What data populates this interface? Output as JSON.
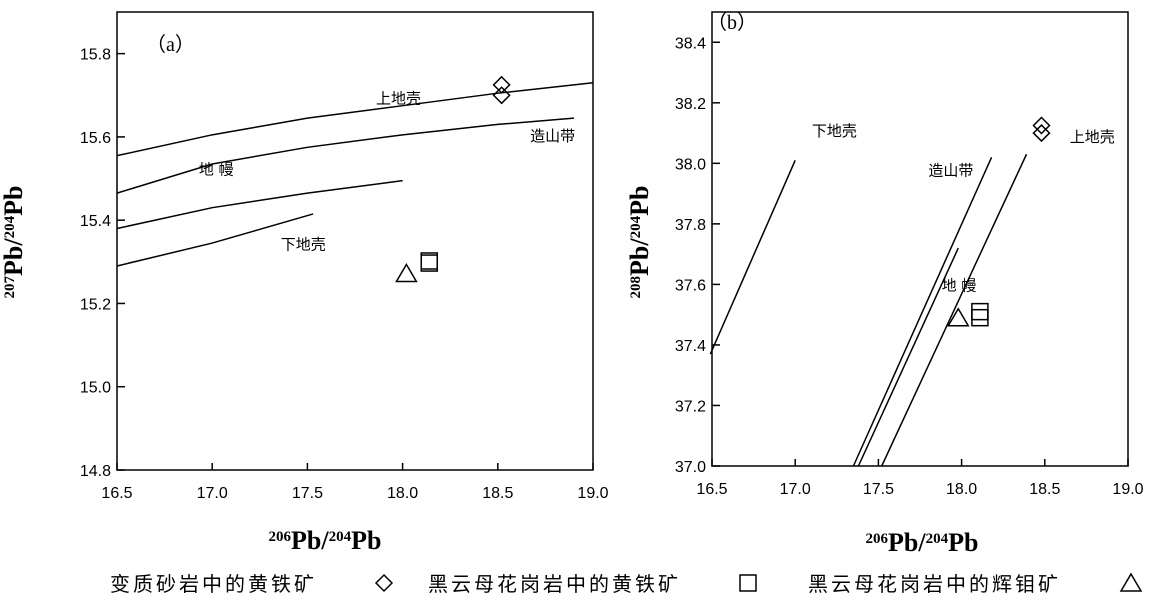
{
  "legend": [
    {
      "label": "变质砂岩中的黄铁矿",
      "marker": "diamond"
    },
    {
      "label": "黑云母花岗岩中的黄铁矿",
      "marker": "square"
    },
    {
      "label": "黑云母花岗岩中的辉钼矿",
      "marker": "triangle"
    }
  ],
  "chart_data": [
    {
      "type": "scatter",
      "panel_label": "（a）",
      "xlabel": {
        "mass": "206",
        "rest": "Pb/",
        "mass2": "204",
        "rest2": "Pb"
      },
      "ylabel": {
        "mass": "207",
        "rest": "Pb/",
        "mass2": "204",
        "rest2": "Pb"
      },
      "xlim": [
        16.5,
        19.0
      ],
      "ylim": [
        14.8,
        15.9
      ],
      "xticks": [
        "16.5",
        "17.0",
        "17.5",
        "18.0",
        "18.5",
        "19.0"
      ],
      "yticks": [
        "14.8",
        "15.0",
        "15.2",
        "15.4",
        "15.6",
        "15.8"
      ],
      "evolution_curves": [
        {
          "name": "上地壳",
          "points": [
            [
              16.5,
              15.555
            ],
            [
              17.0,
              15.605
            ],
            [
              17.5,
              15.645
            ],
            [
              18.0,
              15.675
            ],
            [
              18.5,
              15.705
            ],
            [
              19.0,
              15.73
            ]
          ]
        },
        {
          "name": "造山带",
          "points": [
            [
              16.5,
              15.465
            ],
            [
              17.0,
              15.535
            ],
            [
              17.5,
              15.575
            ],
            [
              18.0,
              15.605
            ],
            [
              18.5,
              15.63
            ],
            [
              18.9,
              15.645
            ]
          ]
        },
        {
          "name": "地幔",
          "points": [
            [
              16.5,
              15.38
            ],
            [
              17.0,
              15.43
            ],
            [
              17.5,
              15.465
            ],
            [
              18.0,
              15.495
            ]
          ]
        },
        {
          "name": "下地壳",
          "points": [
            [
              16.5,
              15.29
            ],
            [
              17.0,
              15.345
            ],
            [
              17.53,
              15.415
            ]
          ]
        }
      ],
      "curve_labels": [
        {
          "text": "上地壳",
          "x": 17.86,
          "y": 15.68
        },
        {
          "text": "造山带",
          "x": 18.67,
          "y": 15.59
        },
        {
          "text": "地 幔",
          "x": 16.93,
          "y": 15.51
        },
        {
          "text": "下地壳",
          "x": 17.36,
          "y": 15.33
        }
      ],
      "series": [
        {
          "name": "变质砂岩中的黄铁矿",
          "marker": "diamond",
          "points": [
            [
              18.52,
              15.725
            ],
            [
              18.52,
              15.7
            ]
          ]
        },
        {
          "name": "黑云母花岗岩中的黄铁矿",
          "marker": "square",
          "points": [
            [
              18.14,
              15.297
            ],
            [
              18.14,
              15.302
            ]
          ]
        },
        {
          "name": "黑云母花岗岩中的辉钼矿",
          "marker": "triangle",
          "points": [
            [
              18.02,
              15.272
            ]
          ]
        }
      ]
    },
    {
      "type": "scatter",
      "panel_label": "（b）",
      "xlabel": {
        "mass": "206",
        "rest": "Pb/",
        "mass2": "204",
        "rest2": "Pb"
      },
      "ylabel": {
        "mass": "208",
        "rest": "Pb/",
        "mass2": "204",
        "rest2": "Pb"
      },
      "xlim": [
        16.5,
        19.0
      ],
      "ylim": [
        37.0,
        38.5
      ],
      "xticks": [
        "16.5",
        "17.0",
        "17.5",
        "18.0",
        "18.5",
        "19.0"
      ],
      "yticks": [
        "37.0",
        "37.2",
        "37.4",
        "37.6",
        "37.8",
        "38.0",
        "38.2",
        "38.4"
      ],
      "evolution_curves": [
        {
          "name": "下地壳",
          "points": [
            [
              16.49,
              37.37
            ],
            [
              17.0,
              38.01
            ]
          ]
        },
        {
          "name": "造山带",
          "points": [
            [
              17.35,
              37.0
            ],
            [
              18.18,
              38.02
            ]
          ]
        },
        {
          "name": "地幔",
          "points": [
            [
              17.38,
              37.0
            ],
            [
              17.98,
              37.72
            ]
          ]
        },
        {
          "name": "上地壳",
          "points": [
            [
              17.52,
              37.0
            ],
            [
              18.39,
              38.03
            ]
          ]
        }
      ],
      "curve_labels": [
        {
          "text": "下地壳",
          "x": 17.1,
          "y": 38.09
        },
        {
          "text": "造山带",
          "x": 17.8,
          "y": 37.96
        },
        {
          "text": "地 幔",
          "x": 17.88,
          "y": 37.58
        },
        {
          "text": "上地壳",
          "x": 18.65,
          "y": 38.07
        }
      ],
      "series": [
        {
          "name": "变质砂岩中的黄铁矿",
          "marker": "diamond",
          "points": [
            [
              18.48,
              38.125
            ],
            [
              18.48,
              38.1
            ]
          ]
        },
        {
          "name": "黑云母花岗岩中的黄铁矿",
          "marker": "square",
          "points": [
            [
              18.11,
              37.49
            ],
            [
              18.11,
              37.51
            ]
          ]
        },
        {
          "name": "黑云母花岗岩中的辉钼矿",
          "marker": "triangle",
          "points": [
            [
              17.98,
              37.49
            ]
          ]
        }
      ]
    }
  ]
}
